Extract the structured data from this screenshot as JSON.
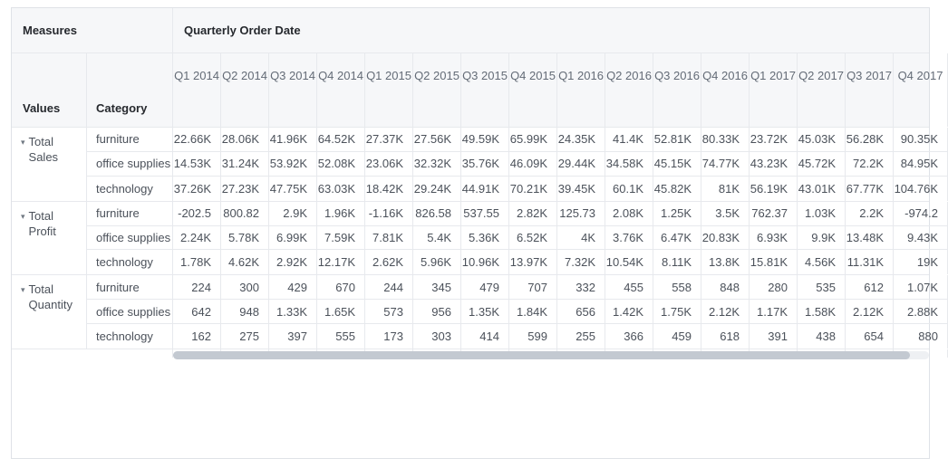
{
  "table": {
    "corner_label": "Measures",
    "column_dimension_label": "Quarterly Order Date",
    "values_label": "Values",
    "category_label": "Category",
    "columns": [
      "Q1 2014",
      "Q2 2014",
      "Q3 2014",
      "Q4 2014",
      "Q1 2015",
      "Q2 2015",
      "Q3 2015",
      "Q4 2015",
      "Q1 2016",
      "Q2 2016",
      "Q3 2016",
      "Q4 2016",
      "Q1 2017",
      "Q2 2017",
      "Q3 2017",
      "Q4 2017"
    ],
    "row_groups": [
      {
        "measure": "Total Sales",
        "rows": [
          {
            "category": "furniture",
            "values": [
              "22.66K",
              "28.06K",
              "41.96K",
              "64.52K",
              "27.37K",
              "27.56K",
              "49.59K",
              "65.99K",
              "24.35K",
              "41.4K",
              "52.81K",
              "80.33K",
              "23.72K",
              "45.03K",
              "56.28K",
              "90.35K"
            ]
          },
          {
            "category": "office supplies",
            "values": [
              "14.53K",
              "31.24K",
              "53.92K",
              "52.08K",
              "23.06K",
              "32.32K",
              "35.76K",
              "46.09K",
              "29.44K",
              "34.58K",
              "45.15K",
              "74.77K",
              "43.23K",
              "45.72K",
              "72.2K",
              "84.95K"
            ]
          },
          {
            "category": "technology",
            "values": [
              "37.26K",
              "27.23K",
              "47.75K",
              "63.03K",
              "18.42K",
              "29.24K",
              "44.91K",
              "70.21K",
              "39.45K",
              "60.1K",
              "45.82K",
              "81K",
              "56.19K",
              "43.01K",
              "67.77K",
              "104.76K"
            ]
          }
        ]
      },
      {
        "measure": "Total Profit",
        "rows": [
          {
            "category": "furniture",
            "values": [
              "-202.5",
              "800.82",
              "2.9K",
              "1.96K",
              "-1.16K",
              "826.58",
              "537.55",
              "2.82K",
              "125.73",
              "2.08K",
              "1.25K",
              "3.5K",
              "762.37",
              "1.03K",
              "2.2K",
              "-974.2"
            ]
          },
          {
            "category": "office supplies",
            "values": [
              "2.24K",
              "5.78K",
              "6.99K",
              "7.59K",
              "7.81K",
              "5.4K",
              "5.36K",
              "6.52K",
              "4K",
              "3.76K",
              "6.47K",
              "20.83K",
              "6.93K",
              "9.9K",
              "13.48K",
              "9.43K"
            ]
          },
          {
            "category": "technology",
            "values": [
              "1.78K",
              "4.62K",
              "2.92K",
              "12.17K",
              "2.62K",
              "5.96K",
              "10.96K",
              "13.97K",
              "7.32K",
              "10.54K",
              "8.11K",
              "13.8K",
              "15.81K",
              "4.56K",
              "11.31K",
              "19K"
            ]
          }
        ]
      },
      {
        "measure": "Total Quantity",
        "rows": [
          {
            "category": "furniture",
            "values": [
              "224",
              "300",
              "429",
              "670",
              "244",
              "345",
              "479",
              "707",
              "332",
              "455",
              "558",
              "848",
              "280",
              "535",
              "612",
              "1.07K"
            ]
          },
          {
            "category": "office supplies",
            "values": [
              "642",
              "948",
              "1.33K",
              "1.65K",
              "573",
              "956",
              "1.35K",
              "1.84K",
              "656",
              "1.42K",
              "1.75K",
              "2.12K",
              "1.17K",
              "1.58K",
              "2.12K",
              "2.88K"
            ]
          },
          {
            "category": "technology",
            "values": [
              "162",
              "275",
              "397",
              "555",
              "173",
              "303",
              "414",
              "599",
              "255",
              "366",
              "459",
              "618",
              "391",
              "438",
              "654",
              "880"
            ]
          }
        ]
      }
    ],
    "icons": {
      "collapse_caret": "▾"
    },
    "colors": {
      "header_bg": "#f6f7f9",
      "border": "#e7e9ed",
      "outer_border": "#dfe2e7",
      "header_text": "#26292e",
      "column_header_text": "#636b76",
      "body_text": "#4b515a",
      "scrollbar_thumb": "#c3c9d1",
      "scrollbar_track": "#eef0f3"
    }
  }
}
